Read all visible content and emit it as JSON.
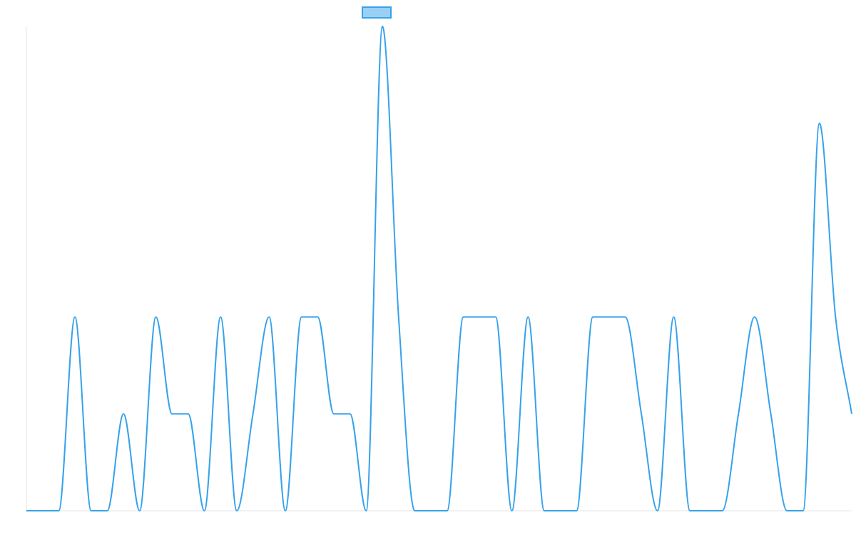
{
  "chart_data": {
    "type": "line",
    "title": "",
    "xlabel": "",
    "ylabel": "",
    "legend": {
      "placement": "top-center",
      "entries": [
        ""
      ]
    },
    "grid": false,
    "smooth": true,
    "ylim": [
      0,
      5
    ],
    "x": [
      0,
      1,
      2,
      3,
      4,
      5,
      6,
      7,
      8,
      9,
      10,
      11,
      12,
      13,
      14,
      15,
      16,
      17,
      18,
      19,
      20,
      21,
      22,
      23,
      24,
      25,
      26,
      27,
      28,
      29,
      30,
      31,
      32,
      33,
      34,
      35,
      36,
      37,
      38,
      39,
      40,
      41,
      42,
      43,
      44,
      45,
      46,
      47,
      48,
      49,
      50,
      51
    ],
    "series": [
      {
        "name": "",
        "color": "#36a2eb",
        "fill": "#9ad0f5",
        "values": [
          0,
          0,
          0,
          2,
          0,
          0,
          1,
          0,
          2,
          1,
          1,
          0,
          2,
          0,
          1,
          2,
          0,
          2,
          2,
          1,
          1,
          0,
          5,
          2,
          0,
          0,
          0,
          2,
          2,
          2,
          0,
          2,
          0,
          0,
          0,
          2,
          2,
          2,
          1,
          0,
          2,
          0,
          0,
          0,
          1,
          2,
          1,
          0,
          0,
          4,
          2,
          1
        ]
      }
    ]
  }
}
